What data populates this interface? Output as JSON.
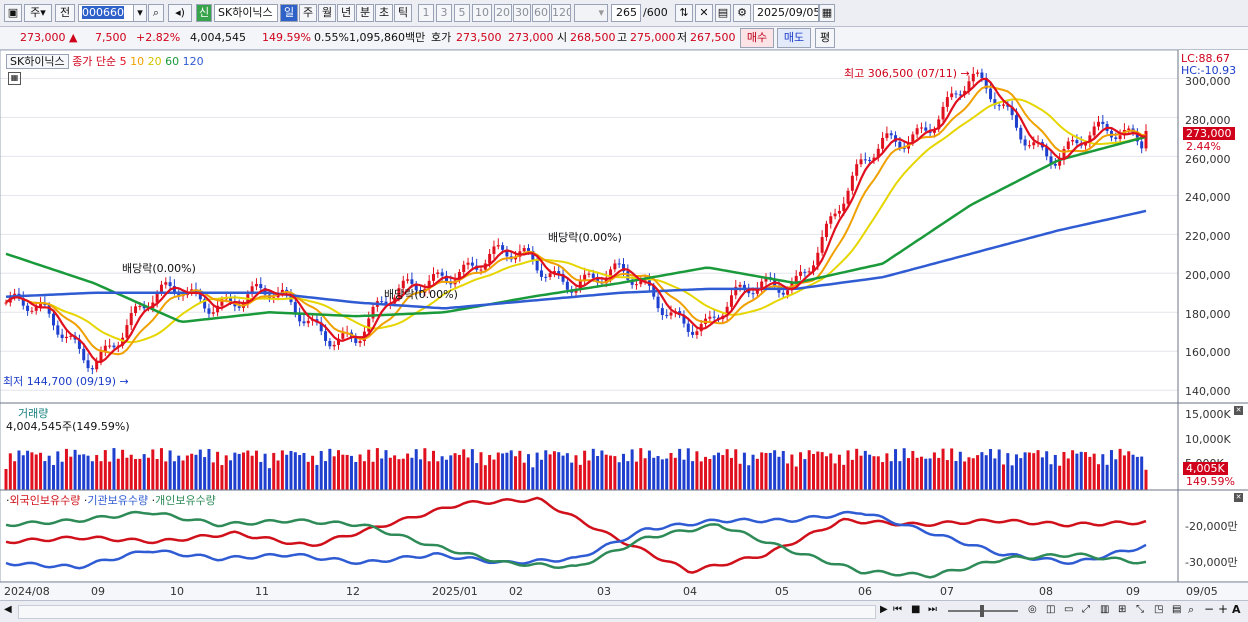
{
  "toolbar": {
    "period_short": "주",
    "prev_label": "전",
    "code": "000660",
    "badge": "신",
    "name": "SK하이닉스",
    "periods": [
      "일",
      "주",
      "월",
      "년",
      "분",
      "초",
      "틱"
    ],
    "numbers": [
      "1",
      "3",
      "5",
      "10",
      "20",
      "30",
      "60",
      "120"
    ],
    "count": "265",
    "count_total": "/600",
    "date": "2025/09/05"
  },
  "quote": {
    "price": "273,000 ▲",
    "change": "7,500",
    "change_pct": "+2.82%",
    "volume": "4,004,545",
    "volume_ratio": "149.59%",
    "turnover": "0.55%",
    "amount": "1,095,860백만",
    "bid_label": "호가",
    "bid": "273,500",
    "ask": "273,000",
    "open_label": "시",
    "open": "268,500",
    "high_label": "고",
    "high": "275,000",
    "low_label": "저",
    "low": "267,500",
    "buy_label": "매수",
    "sell_label": "매도",
    "eval_label": "평"
  },
  "price_panel": {
    "stock_label": "SK하이닉스",
    "ma_title": "종가 단순",
    "ma_periods": [
      {
        "label": "5",
        "color": "#e0101e"
      },
      {
        "label": "10",
        "color": "#f0a000"
      },
      {
        "label": "20",
        "color": "#e6d600"
      },
      {
        "label": "60",
        "color": "#1a9a3a"
      },
      {
        "label": "120",
        "color": "#2f5bd3"
      }
    ],
    "lc": "LC:88.67",
    "hc": "HC:-10.93",
    "high_note": "최고 306,500 (07/11)",
    "low_note": "최저 144,700 (09/19)",
    "dividends": [
      "배당락(0.00%)",
      "배당락(0.00%)",
      "배당락(0.00%)"
    ],
    "current_price": "273,000",
    "current_pct": "2.44%",
    "y_ticks": [
      "300,000",
      "280,000",
      "260,000",
      "240,000",
      "220,000",
      "200,000",
      "180,000",
      "160,000",
      "140,000"
    ]
  },
  "volume_panel": {
    "title": "거래량",
    "value_label": "4,004,545주(149.59%)",
    "y_ticks": [
      "15,000K",
      "10,000K",
      "5,000K"
    ],
    "current": "4,005K",
    "current_pct": "149.59%"
  },
  "holding_panel": {
    "labels": [
      "외국인보유수량",
      "기관보유수량",
      "개인보유수량"
    ],
    "colors": [
      "#d0101a",
      "#2f5bd3",
      "#2e8b57"
    ],
    "y_ticks": [
      "-20,000만",
      "-30,000만"
    ]
  },
  "x_axis": [
    "2024/08",
    "09",
    "10",
    "11",
    "12",
    "2025/01",
    "02",
    "03",
    "04",
    "05",
    "06",
    "07",
    "08",
    "09",
    "09/05"
  ],
  "chart_data": {
    "type": "candlestick",
    "period": "weekly",
    "price_high": {
      "value": 306500,
      "date": "07/11"
    },
    "price_low": {
      "value": 144700,
      "date": "09/19"
    },
    "last_close": 273000,
    "ylim": [
      135000,
      312000
    ],
    "close_series_approx": [
      {
        "month": "2024/08",
        "value": 185000
      },
      {
        "month": "09",
        "value": 160000
      },
      {
        "month": "10",
        "value": 192000
      },
      {
        "month": "11",
        "value": 185000
      },
      {
        "month": "12",
        "value": 168000
      },
      {
        "month": "2025/01",
        "value": 205000
      },
      {
        "month": "02",
        "value": 205000
      },
      {
        "month": "03",
        "value": 195000
      },
      {
        "month": "04",
        "value": 175000
      },
      {
        "month": "05",
        "value": 200000
      },
      {
        "month": "06",
        "value": 265000
      },
      {
        "month": "07",
        "value": 295000
      },
      {
        "month": "08",
        "value": 262000
      },
      {
        "month": "09",
        "value": 273000
      }
    ],
    "ma120_approx": [
      188000,
      190000,
      190000,
      190000,
      185000,
      182000,
      186000,
      190000,
      192000,
      192000,
      198000,
      210000,
      222000,
      232000
    ],
    "ma60_approx": [
      210000,
      195000,
      175000,
      180000,
      178000,
      180000,
      188000,
      195000,
      203000,
      195000,
      205000,
      235000,
      258000,
      270000
    ],
    "volume_current": 4004545,
    "volume_ratio_pct": 149.59
  }
}
